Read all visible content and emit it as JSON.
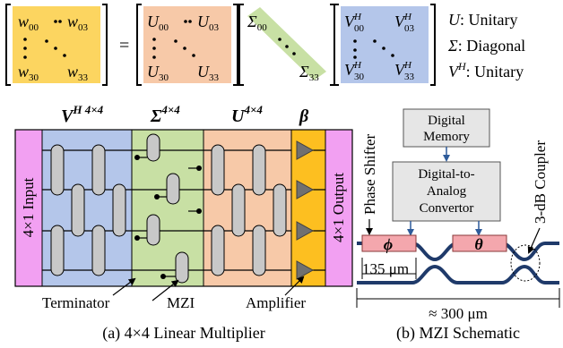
{
  "colors": {
    "yellow": "#fcd560",
    "peach": "#f7c9a8",
    "green": "#c8e0a4",
    "blue": "#b4c6ea",
    "magenta": "#f2a0f2",
    "amber": "#fdbf20",
    "pink": "#f4a7ad",
    "gray_box": "#e6e6e6",
    "navy": "#1f3a6a",
    "mzi_fill": "#c8c8c8"
  },
  "equation": {
    "w": {
      "sym": "w",
      "tl": "00",
      "tr": "03",
      "bl": "30",
      "br": "33"
    },
    "equals": "=",
    "u": {
      "sym": "U",
      "tl": "00",
      "tr": "03",
      "bl": "30",
      "br": "33"
    },
    "sigma": {
      "sym": "Σ",
      "tl": "00",
      "br": "33"
    },
    "v": {
      "sym": "V",
      "sup": "H",
      "tl": "00",
      "tr": "03",
      "bl": "30",
      "br": "33"
    }
  },
  "legend": [
    {
      "sym": "U",
      "text": ": Unitary"
    },
    {
      "sym": "Σ",
      "text": ": Diagonal"
    },
    {
      "sym": "V",
      "sup": "H",
      "text": ": Unitary"
    }
  ],
  "multiplier": {
    "headers": {
      "vh": {
        "base": "V",
        "sup": "H 4×4"
      },
      "sigma": {
        "base": "Σ",
        "sup": "4×4"
      },
      "u": {
        "base": "U",
        "sup": "4×4"
      },
      "beta": "β"
    },
    "input_label": "4×1 Input",
    "output_label": "4×1 Output",
    "callouts": {
      "terminator": "Terminator",
      "mzi": "MZI",
      "amplifier": "Amplifier"
    },
    "caption": "(a) 4×4 Linear Multiplier"
  },
  "schematic": {
    "phase_shifter": "Phase Shifter",
    "coupler": "3-dB Coupler",
    "memory_line1": "Digital",
    "memory_line2": "Memory",
    "dac_line1": "Digital-to-",
    "dac_line2": "Analog",
    "dac_line3": "Convertor",
    "phi": "ϕ",
    "theta": "θ",
    "length_short": "135 μm",
    "length_total": "≈ 300 μm",
    "caption": "(b) MZI Schematic"
  }
}
